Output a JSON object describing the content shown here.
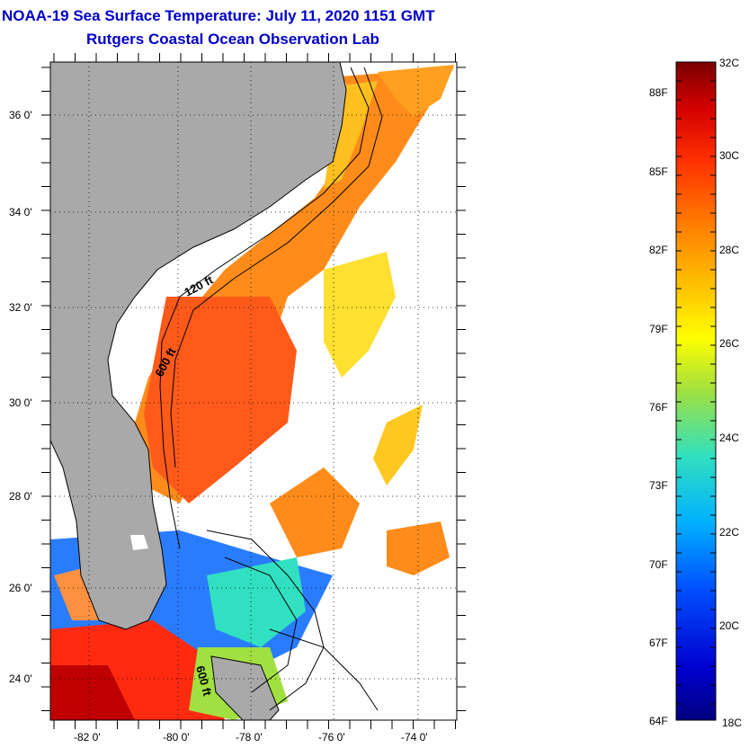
{
  "header": {
    "title": "NOAA-19 Sea Surface Temperature:  July 11, 2020 1151 GMT",
    "subtitle": "Rutgers Coastal Ocean Observation Lab"
  },
  "map": {
    "lat_labels": [
      "36 0'",
      "34 0'",
      "32 0'",
      "30 0'",
      "28 0'",
      "26 0'",
      "24 0'"
    ],
    "lon_labels": [
      "-82 0'",
      "-80 0'",
      "-78 0'",
      "-76 0'",
      "-74 0'"
    ],
    "contour_labels": [
      "120 ft",
      "600 ft",
      "600 ft"
    ],
    "colors": {
      "land": "#a9a9a9",
      "ocean_nodata": "#ffffff",
      "frame": "#000000"
    }
  },
  "colorbar": {
    "celsius_labels": [
      "32C",
      "30C",
      "28C",
      "26C",
      "24C",
      "22C",
      "20C",
      "18C"
    ],
    "fahrenheit_labels": [
      "88F",
      "85F",
      "82F",
      "79F",
      "76F",
      "73F",
      "70F",
      "67F",
      "64F"
    ],
    "colors": [
      "#7a0000",
      "#d40000",
      "#ff3000",
      "#ff8000",
      "#ffc800",
      "#ffff00",
      "#a0e040",
      "#30e0c0",
      "#00b0ff",
      "#0050ff",
      "#0000d0",
      "#000080"
    ]
  }
}
